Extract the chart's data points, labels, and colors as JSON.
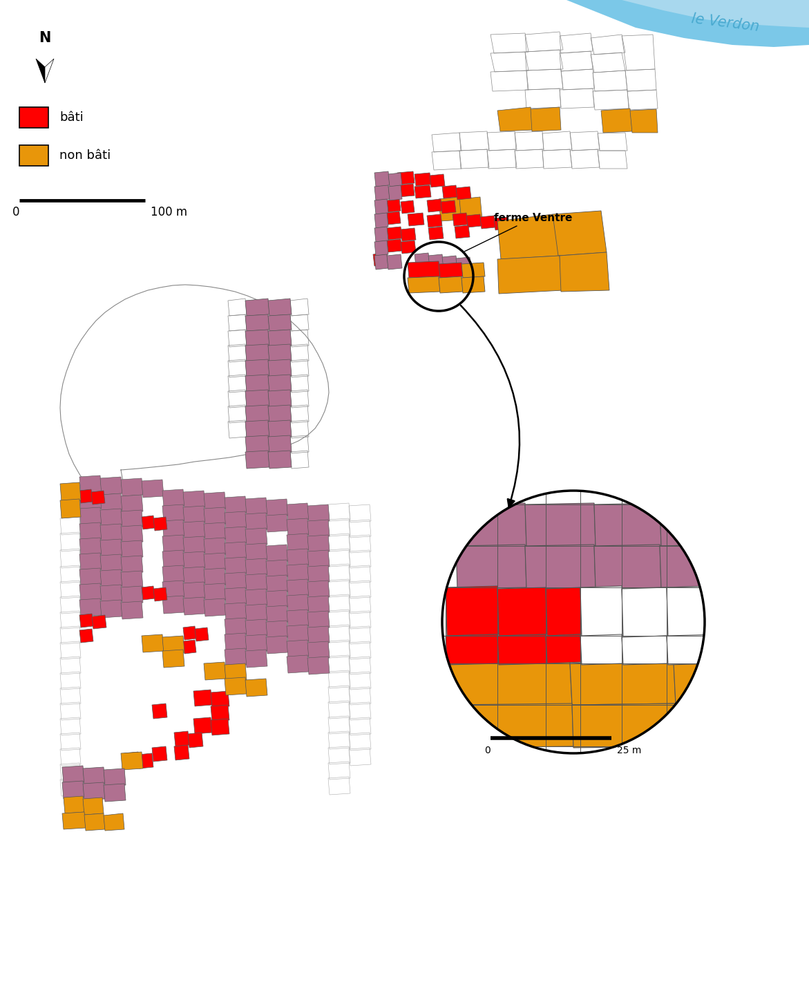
{
  "legend_bati": "bâti",
  "legend_non_bati": "non bâti",
  "color_bati": "#FF0000",
  "color_non_bati": "#E8960A",
  "color_other_filled": "#B07090",
  "color_cadastre_line": "#555555",
  "color_water": "#7BC8E8",
  "color_water_text": "#4AAAD0",
  "background_color": "#FFFFFF",
  "verdon_label": "le Verdon"
}
